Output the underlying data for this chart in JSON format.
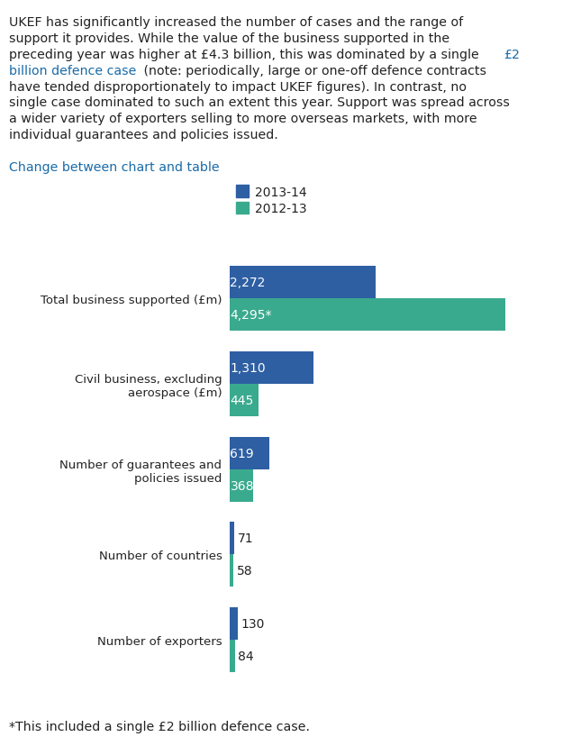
{
  "categories": [
    "Total business supported (£m)",
    "Civil business, excluding\naerospace (£m)",
    "Number of guarantees and\npolicies issued",
    "Number of countries",
    "Number of exporters"
  ],
  "values_2013_14": [
    2272,
    1310,
    619,
    71,
    130
  ],
  "values_2012_13": [
    4295,
    445,
    368,
    58,
    84
  ],
  "labels_2013_14": [
    "2,272",
    "1,310",
    "619",
    "71",
    "130"
  ],
  "labels_2012_13": [
    "4,295*",
    "445",
    "368",
    "58",
    "84"
  ],
  "color_2013_14": "#2e5fa3",
  "color_2012_13": "#3aaa8e",
  "legend_2013_14": "2013-14",
  "legend_2012_13": "2012-13",
  "footnote": "*This included a single £2 billion defence case.",
  "link_text": "Change between chart and table",
  "figsize": [
    6.45,
    8.29
  ],
  "dpi": 100,
  "label_inside_threshold": 300,
  "bar_height": 0.38
}
